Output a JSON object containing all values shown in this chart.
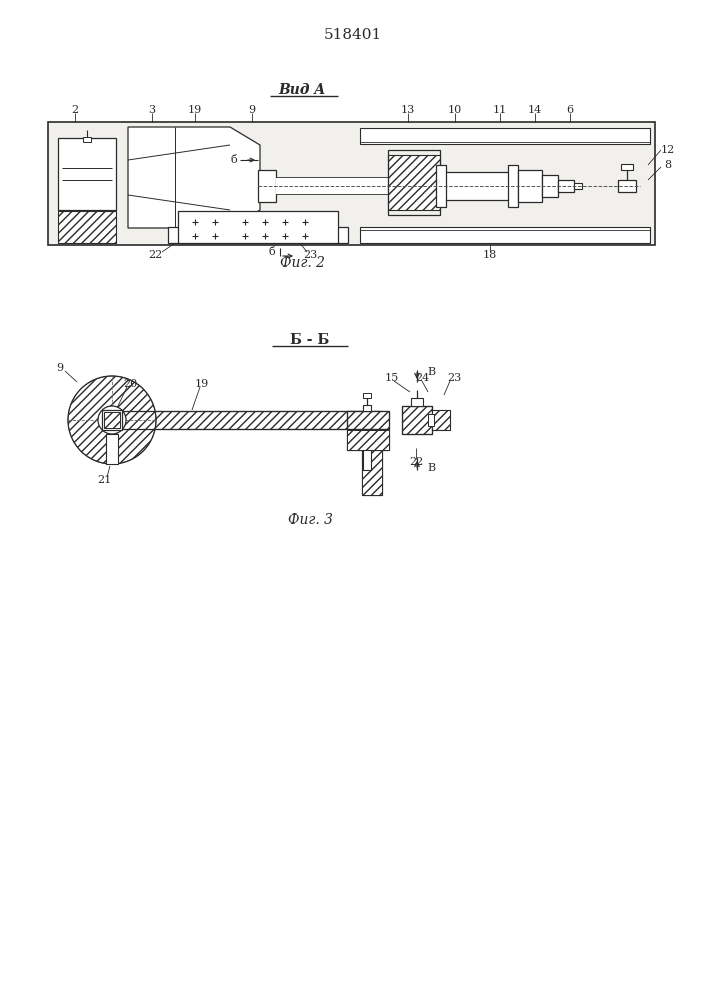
{
  "patent_number": "518401",
  "fig2_title": "Вид A",
  "fig2_caption": "Фиг. 2",
  "fig3_title": "Б - Б",
  "fig3_caption": "Фиг. 3",
  "line_color": "#2a2a2a",
  "bg_color": "white"
}
